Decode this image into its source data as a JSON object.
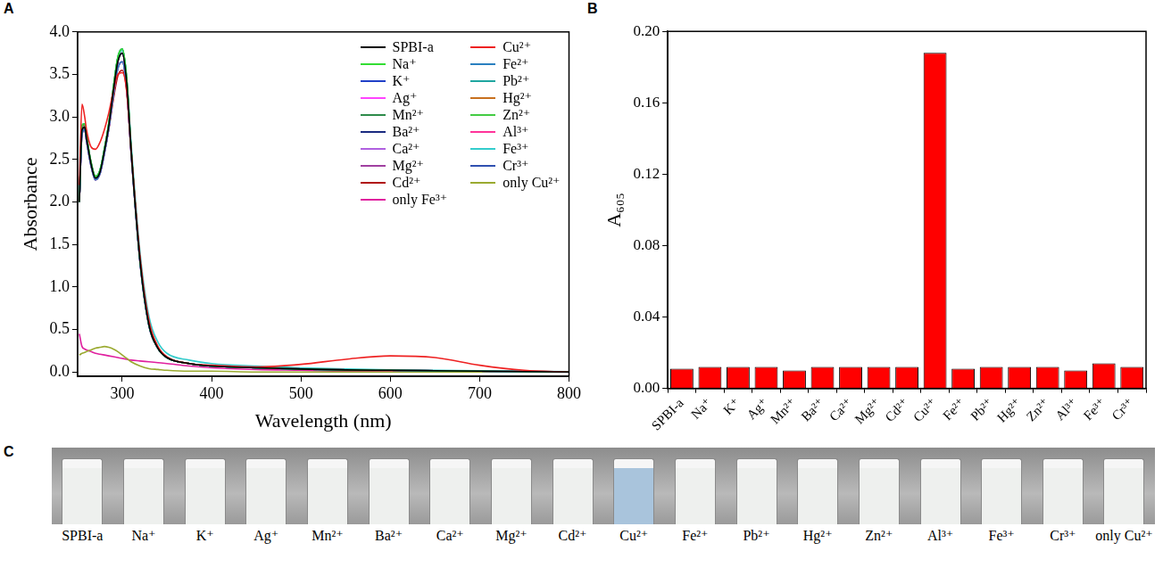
{
  "chart_data": [
    {
      "panel": "A",
      "type": "line",
      "x_label": "Wavelength (nm)",
      "y_label": "Absorbance",
      "x": [
        252,
        255,
        258,
        260,
        265,
        270,
        275,
        280,
        285,
        290,
        295,
        300,
        305,
        310,
        320,
        330,
        340,
        350,
        375,
        400,
        450,
        500,
        550,
        600,
        650,
        700,
        750,
        800
      ],
      "series": [
        {
          "name": "SPBI-a",
          "color": "#000000",
          "values": [
            2.0,
            2.85,
            2.88,
            2.75,
            2.45,
            2.28,
            2.35,
            2.6,
            2.9,
            3.3,
            3.65,
            3.75,
            3.4,
            2.6,
            1.3,
            0.55,
            0.28,
            0.17,
            0.1,
            0.07,
            0.05,
            0.035,
            0.025,
            0.02,
            0.015,
            0.01,
            0.005,
            0.0
          ]
        },
        {
          "name": "Cu²⁺",
          "color": "#ee2222",
          "values": [
            2.2,
            3.15,
            3.0,
            2.85,
            2.65,
            2.62,
            2.7,
            2.85,
            3.05,
            3.3,
            3.5,
            3.52,
            3.3,
            2.6,
            1.35,
            0.6,
            0.3,
            0.18,
            0.1,
            0.08,
            0.06,
            0.09,
            0.15,
            0.19,
            0.17,
            0.08,
            0.02,
            0.0
          ]
        },
        {
          "name": "Na⁺",
          "color": "#33dd33",
          "values": [
            2.0,
            2.9,
            2.92,
            2.78,
            2.47,
            2.3,
            2.37,
            2.62,
            2.93,
            3.34,
            3.7,
            3.8,
            3.45,
            2.62,
            1.3,
            0.55,
            0.28,
            0.17,
            0.1,
            0.07,
            0.05,
            0.035,
            0.025,
            0.02,
            0.015,
            0.01,
            0.005,
            0.0
          ]
        },
        {
          "name": "Fe²⁺",
          "color": "#2a80c0",
          "values": [
            2.0,
            2.8,
            2.85,
            2.72,
            2.43,
            2.26,
            2.33,
            2.57,
            2.87,
            3.25,
            3.57,
            3.65,
            3.33,
            2.57,
            1.28,
            0.54,
            0.28,
            0.17,
            0.1,
            0.07,
            0.05,
            0.035,
            0.025,
            0.02,
            0.015,
            0.01,
            0.005,
            0.0
          ]
        },
        {
          "name": "K⁺",
          "color": "#2040c8",
          "values": [
            2.0,
            2.85,
            2.88,
            2.75,
            2.45,
            2.28,
            2.35,
            2.6,
            2.9,
            3.3,
            3.65,
            3.75,
            3.4,
            2.6,
            1.3,
            0.55,
            0.28,
            0.17,
            0.1,
            0.07,
            0.05,
            0.035,
            0.025,
            0.02,
            0.015,
            0.01,
            0.005,
            0.0
          ]
        },
        {
          "name": "Pb²⁺",
          "color": "#1fa6a0",
          "values": [
            2.0,
            2.9,
            2.92,
            2.78,
            2.47,
            2.3,
            2.37,
            2.62,
            2.93,
            3.34,
            3.7,
            3.8,
            3.45,
            2.62,
            1.3,
            0.55,
            0.28,
            0.17,
            0.1,
            0.07,
            0.05,
            0.035,
            0.025,
            0.02,
            0.015,
            0.01,
            0.005,
            0.0
          ]
        },
        {
          "name": "Ag⁺",
          "color": "#ff44ff",
          "values": [
            2.0,
            2.8,
            2.85,
            2.72,
            2.43,
            2.26,
            2.33,
            2.57,
            2.87,
            3.25,
            3.57,
            3.65,
            3.33,
            2.57,
            1.28,
            0.54,
            0.28,
            0.17,
            0.1,
            0.07,
            0.05,
            0.035,
            0.025,
            0.02,
            0.015,
            0.01,
            0.005,
            0.0
          ]
        },
        {
          "name": "Hg²⁺",
          "color": "#c8701e",
          "values": [
            2.0,
            2.85,
            2.88,
            2.75,
            2.45,
            2.28,
            2.35,
            2.6,
            2.9,
            3.3,
            3.65,
            3.75,
            3.4,
            2.6,
            1.3,
            0.55,
            0.28,
            0.17,
            0.1,
            0.07,
            0.05,
            0.035,
            0.025,
            0.02,
            0.015,
            0.01,
            0.005,
            0.0
          ]
        },
        {
          "name": "Mn²⁺",
          "color": "#2e8b4a",
          "values": [
            2.0,
            2.8,
            2.85,
            2.72,
            2.43,
            2.26,
            2.33,
            2.57,
            2.87,
            3.25,
            3.57,
            3.65,
            3.33,
            2.57,
            1.28,
            0.54,
            0.28,
            0.17,
            0.1,
            0.07,
            0.05,
            0.035,
            0.025,
            0.02,
            0.015,
            0.01,
            0.005,
            0.0
          ]
        },
        {
          "name": "Zn²⁺",
          "color": "#44cc44",
          "values": [
            2.0,
            2.9,
            2.92,
            2.78,
            2.47,
            2.3,
            2.37,
            2.62,
            2.93,
            3.34,
            3.7,
            3.8,
            3.45,
            2.62,
            1.3,
            0.55,
            0.28,
            0.17,
            0.1,
            0.07,
            0.05,
            0.035,
            0.025,
            0.02,
            0.015,
            0.01,
            0.005,
            0.0
          ]
        },
        {
          "name": "Ba²⁺",
          "color": "#1a2a80",
          "values": [
            2.0,
            2.85,
            2.88,
            2.75,
            2.45,
            2.28,
            2.35,
            2.6,
            2.9,
            3.3,
            3.65,
            3.75,
            3.4,
            2.6,
            1.3,
            0.55,
            0.28,
            0.17,
            0.1,
            0.07,
            0.05,
            0.035,
            0.025,
            0.02,
            0.015,
            0.01,
            0.005,
            0.0
          ]
        },
        {
          "name": "Al³⁺",
          "color": "#ff3399",
          "values": [
            2.0,
            2.8,
            2.85,
            2.72,
            2.43,
            2.26,
            2.33,
            2.57,
            2.87,
            3.25,
            3.57,
            3.65,
            3.33,
            2.57,
            1.28,
            0.54,
            0.28,
            0.17,
            0.1,
            0.07,
            0.05,
            0.035,
            0.025,
            0.02,
            0.015,
            0.01,
            0.005,
            0.0
          ]
        },
        {
          "name": "Ca²⁺",
          "color": "#b060e0",
          "values": [
            2.0,
            2.9,
            2.92,
            2.78,
            2.47,
            2.3,
            2.37,
            2.62,
            2.93,
            3.34,
            3.7,
            3.8,
            3.45,
            2.62,
            1.3,
            0.55,
            0.28,
            0.17,
            0.1,
            0.07,
            0.05,
            0.035,
            0.025,
            0.02,
            0.015,
            0.01,
            0.005,
            0.0
          ]
        },
        {
          "name": "Fe³⁺",
          "color": "#33cccc",
          "values": [
            2.0,
            2.85,
            2.88,
            2.75,
            2.45,
            2.3,
            2.37,
            2.62,
            2.92,
            3.32,
            3.68,
            3.78,
            3.45,
            2.68,
            1.4,
            0.65,
            0.35,
            0.22,
            0.14,
            0.1,
            0.07,
            0.05,
            0.035,
            0.025,
            0.02,
            0.015,
            0.01,
            0.005
          ]
        },
        {
          "name": "Mg²⁺",
          "color": "#a040a0",
          "values": [
            2.0,
            2.85,
            2.88,
            2.75,
            2.45,
            2.28,
            2.35,
            2.6,
            2.9,
            3.3,
            3.65,
            3.75,
            3.4,
            2.6,
            1.3,
            0.55,
            0.28,
            0.17,
            0.1,
            0.07,
            0.05,
            0.035,
            0.025,
            0.02,
            0.015,
            0.01,
            0.005,
            0.0
          ]
        },
        {
          "name": "Cr³⁺",
          "color": "#3050b0",
          "values": [
            2.0,
            2.8,
            2.85,
            2.72,
            2.43,
            2.26,
            2.33,
            2.57,
            2.87,
            3.25,
            3.57,
            3.65,
            3.33,
            2.57,
            1.28,
            0.54,
            0.28,
            0.17,
            0.1,
            0.07,
            0.05,
            0.035,
            0.025,
            0.02,
            0.015,
            0.01,
            0.005,
            0.0
          ]
        },
        {
          "name": "Cd²⁺",
          "color": "#b01010",
          "values": [
            2.0,
            2.9,
            2.9,
            2.77,
            2.47,
            2.3,
            2.36,
            2.58,
            2.86,
            3.2,
            3.48,
            3.55,
            3.3,
            2.58,
            1.3,
            0.55,
            0.28,
            0.17,
            0.1,
            0.07,
            0.05,
            0.035,
            0.025,
            0.02,
            0.015,
            0.01,
            0.005,
            0.0
          ]
        },
        {
          "name": "only Cu²⁺",
          "color": "#9aaa30",
          "values": [
            0.2,
            0.22,
            0.23,
            0.24,
            0.26,
            0.28,
            0.29,
            0.3,
            0.29,
            0.27,
            0.24,
            0.2,
            0.16,
            0.12,
            0.07,
            0.04,
            0.03,
            0.02,
            0.01,
            0.01,
            0,
            0,
            0,
            0,
            0,
            0,
            0,
            0
          ]
        },
        {
          "name": "only Fe³⁺",
          "color": "#e0209f",
          "values": [
            0.45,
            0.3,
            0.27,
            0.26,
            0.24,
            0.22,
            0.21,
            0.2,
            0.19,
            0.18,
            0.17,
            0.16,
            0.15,
            0.14,
            0.13,
            0.12,
            0.11,
            0.1,
            0.07,
            0.05,
            0.03,
            0.02,
            0.01,
            0.01,
            0.01,
            0,
            0,
            0
          ]
        }
      ],
      "xlim": [
        250,
        800
      ],
      "xticks": [
        300,
        400,
        500,
        600,
        700,
        800
      ],
      "ylim": [
        -0.05,
        4.0
      ],
      "yticks": [
        {
          "value": 0,
          "label": "0.0"
        },
        {
          "value": 0.5,
          "label": "0.5"
        },
        {
          "value": 1,
          "label": "1.0"
        },
        {
          "value": 1.5,
          "label": "1.5"
        },
        {
          "value": 2,
          "label": "2.0"
        },
        {
          "value": 2.5,
          "label": "2.5"
        },
        {
          "value": 3,
          "label": "3.0"
        },
        {
          "value": 3.5,
          "label": "3.5"
        },
        {
          "value": 4,
          "label": "4.0"
        }
      ],
      "legend": "upper right",
      "grid": false
    },
    {
      "panel": "B",
      "type": "bar",
      "y_label": "A₆₀₅",
      "categories": [
        "SPBI-a",
        "Na⁺",
        "K⁺",
        "Ag⁺",
        "Mn²⁺",
        "Ba²⁺",
        "Ca²⁺",
        "Mg²⁺",
        "Cd²⁺",
        "Cu²⁺",
        "Fe²⁺",
        "Pb²⁺",
        "Hg²⁺",
        "Zn²⁺",
        "Al³⁺",
        "Fe³⁺",
        "Cr³⁺"
      ],
      "values": [
        0.011,
        0.012,
        0.012,
        0.012,
        0.01,
        0.012,
        0.012,
        0.012,
        0.012,
        0.188,
        0.011,
        0.012,
        0.012,
        0.012,
        0.01,
        0.014,
        0.012
      ],
      "color": "#ff0000",
      "ylim": [
        0,
        0.2
      ],
      "yticks": [
        {
          "value": 0,
          "label": "0.00"
        },
        {
          "value": 0.04,
          "label": "0.04"
        },
        {
          "value": 0.08,
          "label": "0.08"
        },
        {
          "value": 0.12,
          "label": "0.12"
        },
        {
          "value": 0.16,
          "label": "0.16"
        },
        {
          "value": 0.2,
          "label": "0.20"
        }
      ],
      "grid": false
    }
  ],
  "photo": {
    "panel": "C",
    "labels": [
      "SPBI-a",
      "Na⁺",
      "K⁺",
      "Ag⁺",
      "Mn²⁺",
      "Ba²⁺",
      "Ca²⁺",
      "Mg²⁺",
      "Cd²⁺",
      "Cu²⁺",
      "Fe²⁺",
      "Pb²⁺",
      "Hg²⁺",
      "Zn²⁺",
      "Al³⁺",
      "Fe³⁺",
      "Cr³⁺",
      "only Cu²⁺"
    ],
    "colors": [
      "#eef0ee",
      "#eef0ee",
      "#eef0ee",
      "#eef0ee",
      "#eef0ee",
      "#eef0ee",
      "#eef0ee",
      "#eef0ee",
      "#eef0ee",
      "#a9c4dc",
      "#eef0ee",
      "#eef0ee",
      "#eef0ee",
      "#eef0ee",
      "#eef0ee",
      "#eef0ee",
      "#eef0ee",
      "#eef0ee"
    ]
  }
}
